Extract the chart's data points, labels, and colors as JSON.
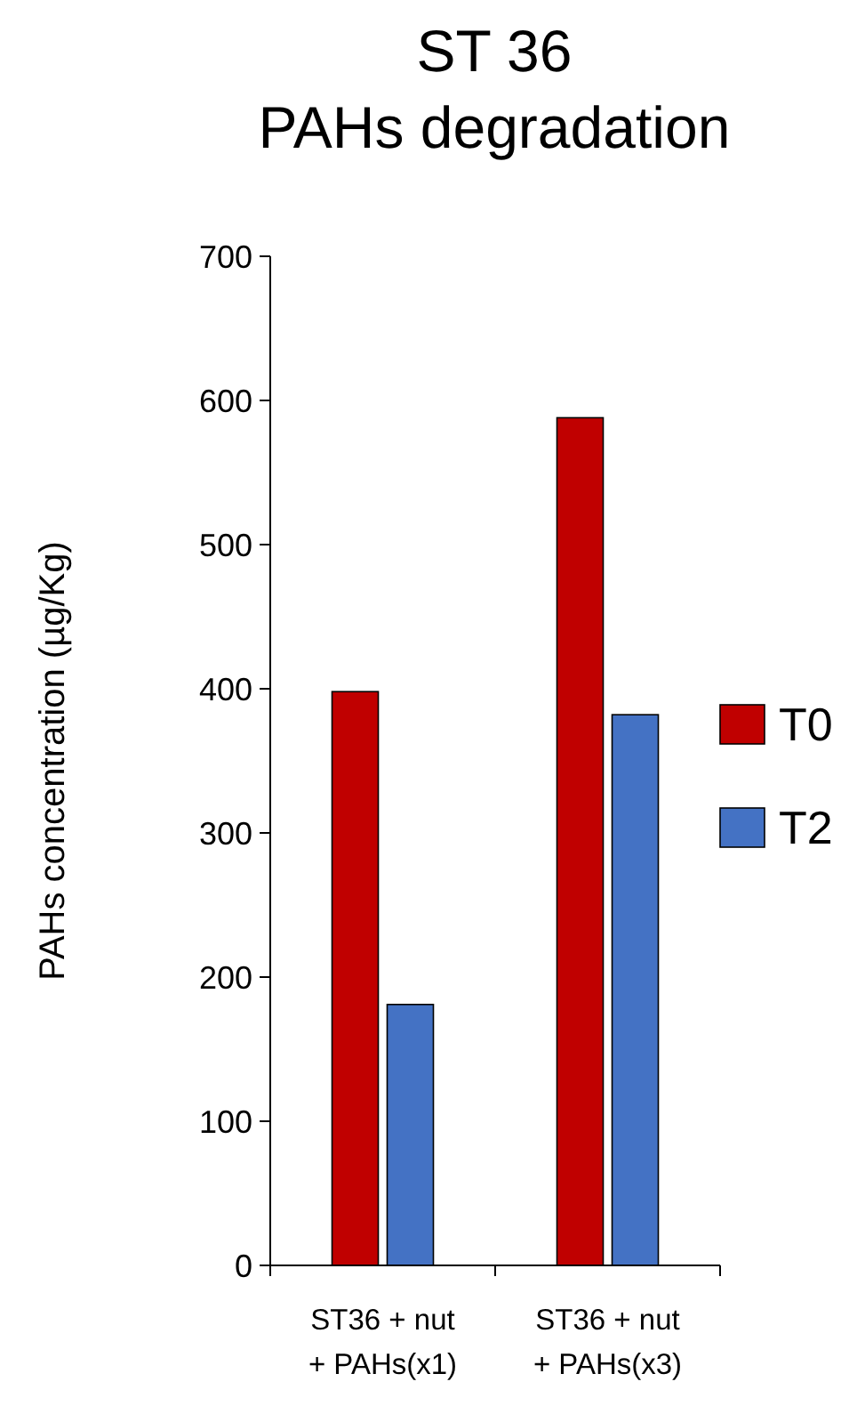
{
  "chart_data": {
    "type": "bar",
    "title": "ST 36\nPAHs degradation",
    "ylabel": "PAHs concentration (µg/Kg)",
    "categories": [
      "ST36 + nut + PAHs(x1)",
      "ST36 + nut + PAHs(x3)"
    ],
    "series": [
      {
        "name": "T0",
        "color": "#c00000",
        "values": [
          398,
          588
        ]
      },
      {
        "name": "T2",
        "color": "#4472c4",
        "values": [
          181,
          382
        ]
      }
    ],
    "ylim": [
      0,
      700
    ],
    "yticks": [
      0,
      100,
      200,
      300,
      400,
      500,
      600,
      700
    ],
    "grid": false,
    "legend": "right"
  }
}
